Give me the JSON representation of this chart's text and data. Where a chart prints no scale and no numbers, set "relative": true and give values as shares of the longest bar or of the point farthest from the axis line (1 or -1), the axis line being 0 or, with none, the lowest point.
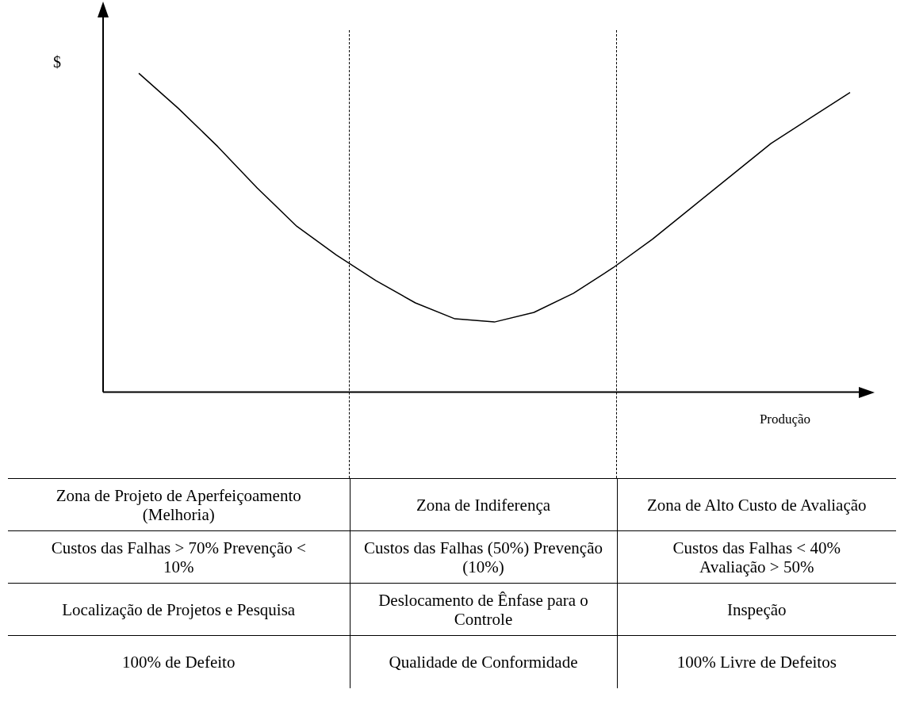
{
  "chart_data": {
    "type": "line",
    "relative": true,
    "ylabel": "$",
    "xlabel": "Produção",
    "legend": false,
    "marker": "none",
    "categories": [
      null,
      null,
      null,
      null,
      null,
      null,
      null,
      null,
      null,
      null,
      null,
      null,
      null,
      null,
      null,
      null,
      null,
      null,
      null
    ],
    "series": [
      {
        "color": "#000000",
        "values": [
          1,
          0.89,
          0.77,
          0.64,
          0.52,
          0.43,
          0.35,
          0.28,
          0.23,
          0.22,
          0.25,
          0.31,
          0.39,
          0.48,
          0.58,
          0.68,
          0.78,
          0.86,
          0.94
        ]
      }
    ],
    "annotations": [
      "Zona de Projeto de Aperfeiçoamento (Melhoria)",
      "Zona de Indiferença",
      "Zona de Alto Custo de Avaliação",
      "Custos das Falhas > 70% Prevenção < 10%",
      "Custos das Falhas (50%) Prevenção (10%)",
      "Custos das Falhas < 40% Avaliação > 50%",
      "Localização de Projetos e Pesquisa",
      "Deslocamento de Ênfase para o Controle",
      "Inspeção",
      "100% de Defeito",
      "Qualidade de Conformidade",
      "100% Livre de Defeitos"
    ]
  }
}
